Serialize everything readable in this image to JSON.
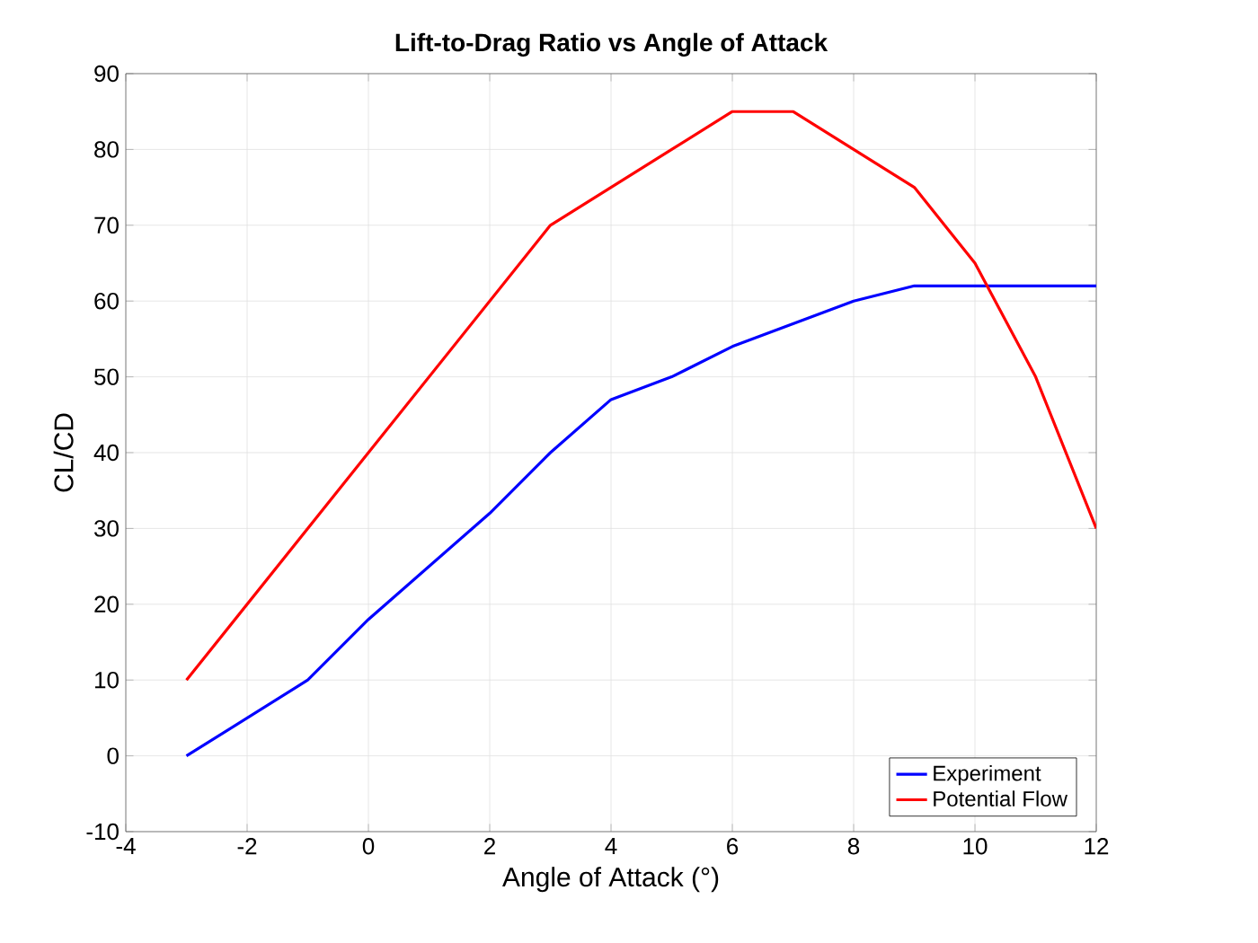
{
  "chart_data": {
    "type": "line",
    "title": "Lift-to-Drag Ratio vs Angle of Attack",
    "xlabel": "Angle of Attack (°)",
    "ylabel": "CL/CD",
    "xlim": [
      -4,
      12
    ],
    "xticks": [
      -4,
      -2,
      0,
      2,
      4,
      6,
      8,
      10,
      12
    ],
    "ylim": [
      -10,
      90
    ],
    "yticks": [
      -10,
      0,
      10,
      20,
      30,
      40,
      50,
      60,
      70,
      80,
      90
    ],
    "grid": true,
    "legend": "bottom right",
    "line_style": "solid",
    "marker": "none",
    "series": [
      {
        "name": "Experiment",
        "color": "#0000ff",
        "x": [
          -3,
          -1,
          0,
          2,
          3,
          4,
          5,
          6,
          7,
          8,
          9,
          10,
          11,
          12
        ],
        "values": [
          0,
          10,
          18,
          32,
          40,
          47,
          50,
          54,
          57,
          60,
          62,
          62,
          62,
          62
        ]
      },
      {
        "name": "Potential Flow",
        "color": "#ff0000",
        "x": [
          -3,
          0,
          2,
          3,
          4,
          5,
          6,
          7,
          8,
          9,
          10,
          11,
          12
        ],
        "values": [
          10,
          40,
          60,
          70,
          75,
          80,
          85,
          85,
          80,
          75,
          65,
          50,
          30
        ]
      }
    ]
  }
}
